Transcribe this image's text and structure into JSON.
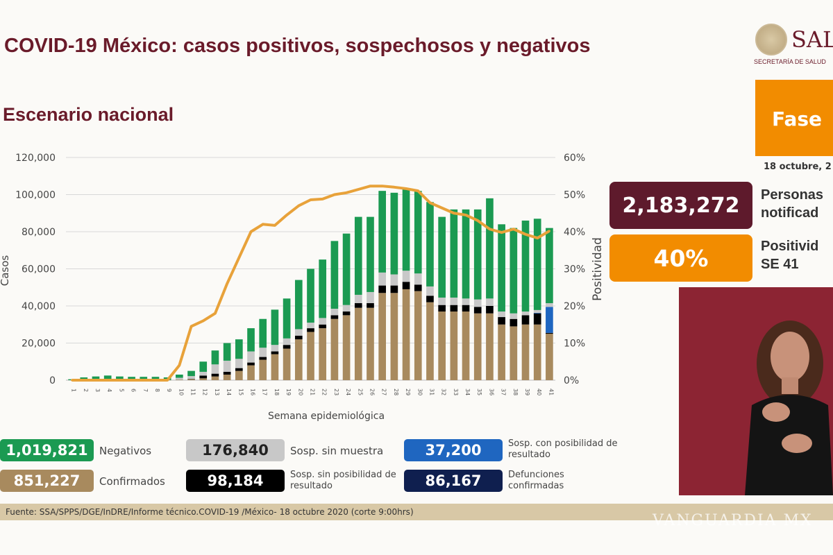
{
  "header": {
    "title": "COVID-19 México: casos positivos, sospechosos y negativos",
    "subtitle": "Escenario nacional",
    "logo_text": "SALUD",
    "logo_subtext": "SECRETARÍA DE SALUD"
  },
  "side": {
    "fase_label": "Fase",
    "date": "18 octubre, 2",
    "notified_value": "2,183,272",
    "notified_label_1": "Personas",
    "notified_label_2": "notificad",
    "positivity_value": "40%",
    "positivity_label_1": "Positivid",
    "positivity_label_2": "SE 41"
  },
  "legend": [
    {
      "value": "1,019,821",
      "label": "Negativos",
      "color": "#1b9a52"
    },
    {
      "value": "851,227",
      "label": "Confirmados",
      "color": "#a88a5e"
    },
    {
      "value": "176,840",
      "label": "Sosp. sin muestra",
      "color": "#c8c8c8"
    },
    {
      "value": "98,184",
      "label": "Sosp. sin posibilidad de resultado",
      "color": "#000000"
    },
    {
      "value": "37,200",
      "label": "Sosp. con posibilidad de resultado",
      "color": "#1f66c0"
    },
    {
      "value": "86,167",
      "label": "Defunciones confirmadas",
      "color": "#0f1f4f"
    }
  ],
  "source": "Fuente: SSA/SPPS/DGE/InDRE/Informe técnico.COVID-19 /México- 18 octubre 2020 (corte 9:00hrs)",
  "watermark": "VANGUARDIA MX",
  "chart_data": {
    "type": "bar",
    "stacked": true,
    "xlabel": "Semana epidemiológica",
    "ylabel": "Casos",
    "y2label": "Positividad",
    "ylim": [
      0,
      120000
    ],
    "y2lim": [
      0,
      60
    ],
    "yticks": [
      "0",
      "20,000",
      "40,000",
      "60,000",
      "80,000",
      "100,000",
      "120,000"
    ],
    "y2ticks": [
      "0%",
      "10%",
      "20%",
      "30%",
      "40%",
      "50%",
      "60%"
    ],
    "grid": true,
    "categories": [
      "1",
      "2",
      "3",
      "4",
      "5",
      "6",
      "7",
      "8",
      "9",
      "10",
      "11",
      "12",
      "13",
      "14",
      "15",
      "16",
      "17",
      "18",
      "19",
      "20",
      "21",
      "22",
      "23",
      "24",
      "25",
      "26",
      "27",
      "28",
      "29",
      "30",
      "31",
      "32",
      "33",
      "34",
      "35",
      "36",
      "37",
      "38",
      "39",
      "40",
      "41"
    ],
    "series": [
      {
        "name": "Confirmados",
        "color": "#a88a5e",
        "values": [
          0,
          100,
          100,
          100,
          100,
          100,
          100,
          100,
          100,
          300,
          500,
          1000,
          2000,
          3000,
          5000,
          8000,
          11000,
          14000,
          17000,
          22000,
          26000,
          28000,
          33000,
          35000,
          39000,
          39000,
          47000,
          47000,
          49000,
          48000,
          42000,
          37000,
          37000,
          37000,
          36000,
          36000,
          30000,
          29000,
          30000,
          30000,
          25000
        ]
      },
      {
        "name": "Sosp. sin posibilidad de resultado",
        "color": "#000000",
        "values": [
          0,
          0,
          0,
          0,
          0,
          0,
          0,
          0,
          0,
          0,
          200,
          1500,
          1500,
          1500,
          1500,
          1500,
          1500,
          1500,
          2000,
          2000,
          2000,
          2000,
          2000,
          2000,
          2500,
          2500,
          4000,
          4000,
          4000,
          3500,
          3500,
          3500,
          3500,
          3500,
          3500,
          4000,
          4000,
          4000,
          5000,
          6000,
          500
        ]
      },
      {
        "name": "Sosp. con posibilidad de resultado",
        "color": "#1f66c0",
        "values": [
          0,
          0,
          0,
          0,
          0,
          0,
          0,
          0,
          0,
          0,
          0,
          0,
          0,
          0,
          0,
          0,
          0,
          0,
          0,
          0,
          0,
          0,
          0,
          0,
          0,
          0,
          0,
          0,
          0,
          0,
          0,
          0,
          0,
          0,
          0,
          0,
          0,
          0,
          0,
          300,
          14000
        ]
      },
      {
        "name": "Sosp. sin muestra",
        "color": "#c8c8c8",
        "values": [
          0,
          0,
          0,
          0,
          0,
          0,
          0,
          0,
          0,
          1000,
          1500,
          2000,
          5000,
          6000,
          5000,
          6000,
          5000,
          3500,
          3500,
          3500,
          3000,
          3500,
          3500,
          3500,
          4500,
          6000,
          7000,
          6000,
          6000,
          6000,
          5000,
          4000,
          4000,
          3500,
          4000,
          4000,
          3000,
          3000,
          2000,
          1500,
          2000
        ]
      },
      {
        "name": "Negativos",
        "color": "#1b9a52",
        "values": [
          500,
          1400,
          1900,
          2400,
          1900,
          1700,
          1700,
          1700,
          1400,
          1700,
          2800,
          5500,
          7500,
          9500,
          10500,
          12500,
          15500,
          19000,
          21500,
          26500,
          29000,
          31500,
          36500,
          38500,
          42000,
          40500,
          44000,
          44000,
          44000,
          44500,
          45500,
          43500,
          47500,
          48000,
          48500,
          54000,
          47000,
          46000,
          49000,
          49200,
          40500
        ]
      }
    ],
    "line": {
      "name": "Positividad",
      "color": "#e8a23a",
      "axis": "right",
      "values": [
        0,
        0,
        0,
        0,
        0,
        0,
        0,
        0,
        0,
        4,
        14.5,
        16,
        18,
        26,
        33,
        40,
        42,
        41.7,
        44.5,
        47,
        48.6,
        48.8,
        50,
        50.5,
        51.4,
        52.3,
        52.3,
        52,
        51.6,
        51,
        47.8,
        46.4,
        45,
        44.5,
        43,
        40.7,
        39.8,
        40.7,
        39.3,
        38.3,
        40.2
      ]
    }
  }
}
